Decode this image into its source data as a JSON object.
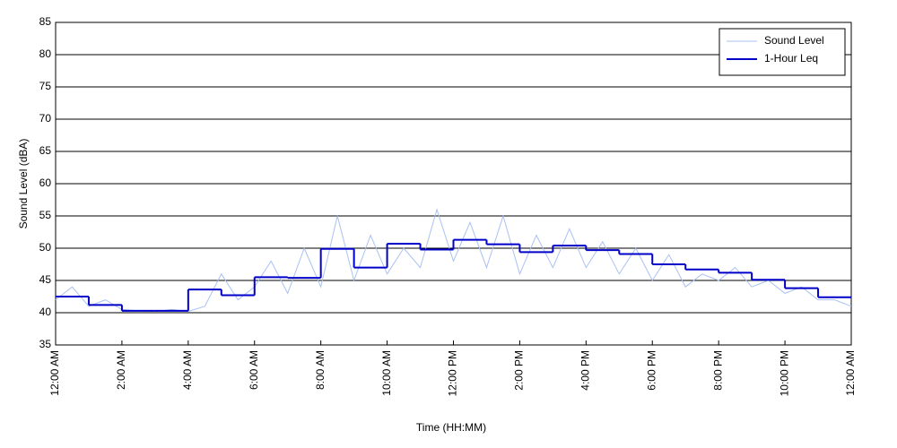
{
  "chart_data": {
    "type": "line",
    "xlabel": "Time (HH:MM)",
    "ylabel": "Sound Level (dBA)",
    "xlim": [
      0,
      24
    ],
    "ylim": [
      35,
      85
    ],
    "xticks": [
      {
        "value": 0,
        "label": "12:00 AM"
      },
      {
        "value": 2,
        "label": "2:00 AM"
      },
      {
        "value": 4,
        "label": "4:00 AM"
      },
      {
        "value": 6,
        "label": "6:00 AM"
      },
      {
        "value": 8,
        "label": "8:00 AM"
      },
      {
        "value": 10,
        "label": "10:00 AM"
      },
      {
        "value": 12,
        "label": "12:00 PM"
      },
      {
        "value": 14,
        "label": "2:00 PM"
      },
      {
        "value": 16,
        "label": "4:00 PM"
      },
      {
        "value": 18,
        "label": "6:00 PM"
      },
      {
        "value": 20,
        "label": "8:00 PM"
      },
      {
        "value": 22,
        "label": "10:00 PM"
      },
      {
        "value": 24,
        "label": "12:00 AM"
      }
    ],
    "yticks": [
      35,
      40,
      45,
      50,
      55,
      60,
      65,
      70,
      75,
      80,
      85
    ],
    "grid": true,
    "legend": "upper right",
    "series": [
      {
        "name": "Sound Level",
        "color": "#a9c1f2",
        "x": [
          0,
          0.5,
          1,
          1.5,
          2,
          2.5,
          3,
          3.5,
          4,
          4.5,
          5,
          5.5,
          6,
          6.5,
          7,
          7.5,
          8,
          8.5,
          9,
          9.5,
          10,
          10.5,
          11,
          11.5,
          12,
          12.5,
          13,
          13.5,
          14,
          14.5,
          15,
          15.5,
          16,
          16.5,
          17,
          17.5,
          18,
          18.5,
          19,
          19.5,
          20,
          20.5,
          21,
          21.5,
          22,
          22.5,
          23,
          23.5,
          24
        ],
        "values": [
          42,
          44,
          41,
          42,
          40.5,
          40.3,
          40.2,
          40.5,
          40.2,
          41,
          46,
          42,
          44,
          48,
          43,
          50,
          44,
          55,
          45,
          52,
          46,
          50,
          47,
          56,
          48,
          54,
          47,
          55,
          46,
          52,
          47,
          53,
          47,
          51,
          46,
          50,
          45,
          49,
          44,
          46,
          45,
          47,
          44,
          45,
          43,
          44,
          42,
          42,
          41
        ]
      },
      {
        "name": "1-Hour Leq",
        "color": "#0000c8",
        "step": true,
        "x": [
          0,
          1,
          2,
          3,
          4,
          5,
          6,
          7,
          8,
          9,
          10,
          11,
          12,
          13,
          14,
          15,
          16,
          17,
          18,
          19,
          20,
          21,
          22,
          23
        ],
        "values": [
          42.5,
          41.2,
          40.3,
          40.3,
          43.6,
          42.7,
          45.5,
          45.4,
          49.9,
          47.0,
          50.7,
          49.8,
          51.3,
          50.6,
          49.4,
          50.4,
          49.7,
          49.1,
          47.5,
          46.7,
          46.2,
          45.1,
          43.8,
          42.4
        ]
      }
    ]
  }
}
